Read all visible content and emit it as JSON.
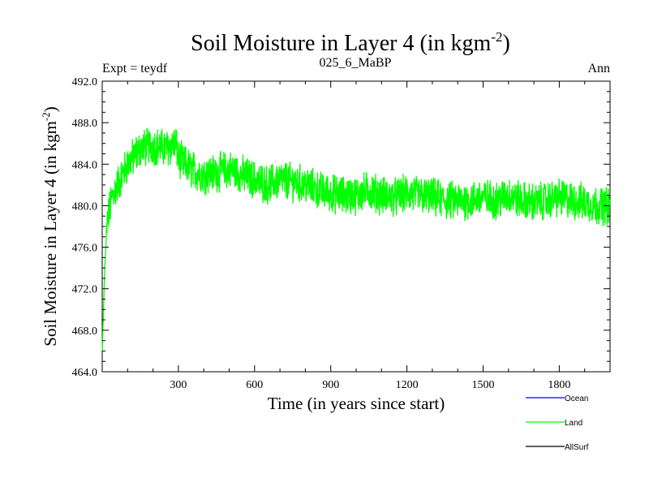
{
  "chart_data": {
    "type": "line",
    "title": "Soil Moisture in Layer 4 (in kgm",
    "title_sup": "-2",
    "title_close": ")",
    "subtitle_left": "Expt = teydf",
    "subtitle_center": "025_6_MaBP",
    "subtitle_right": "Ann",
    "xlabel": "Time (in years since start)",
    "ylabel": "Soil Moisture in Layer 4 (in kgm",
    "ylabel_sup": "-2",
    "ylabel_close": ")",
    "xlim": [
      0,
      2000
    ],
    "ylim": [
      464.0,
      492.0
    ],
    "xticks": [
      300,
      600,
      900,
      1200,
      1500,
      1800
    ],
    "xtick_labels": [
      "300",
      "600",
      "900",
      "1200",
      "1500",
      "1800"
    ],
    "yticks": [
      464,
      468,
      472,
      476,
      480,
      484,
      488,
      492
    ],
    "ytick_labels": [
      "464.0",
      "468.0",
      "472.0",
      "476.0",
      "480.0",
      "484.0",
      "488.0",
      "492.0"
    ],
    "grid": false,
    "legend_position": "bottom-right",
    "series": [
      {
        "name": "Ocean",
        "color": "#0000ff",
        "x": [],
        "y": []
      },
      {
        "name": "Land",
        "color": "#00ff00",
        "x": [
          0,
          5,
          10,
          20,
          40,
          60,
          100,
          150,
          200,
          250,
          290,
          300,
          350,
          400,
          450,
          500,
          550,
          600,
          650,
          700,
          750,
          800,
          850,
          900,
          950,
          1000,
          1050,
          1100,
          1150,
          1200,
          1250,
          1300,
          1350,
          1400,
          1450,
          1500,
          1550,
          1600,
          1650,
          1700,
          1750,
          1800,
          1850,
          1900,
          1950,
          2000
        ],
        "y": [
          466.0,
          470.0,
          474.0,
          478.5,
          481.0,
          482.0,
          484.0,
          485.5,
          485.8,
          485.5,
          486.0,
          484.5,
          483.5,
          483.0,
          483.2,
          483.5,
          483.0,
          482.5,
          482.0,
          482.5,
          482.3,
          482.0,
          481.5,
          481.2,
          481.0,
          481.0,
          481.5,
          481.0,
          480.8,
          481.2,
          481.0,
          480.8,
          480.5,
          480.5,
          480.5,
          480.8,
          480.5,
          481.0,
          480.5,
          480.3,
          480.5,
          480.8,
          480.5,
          480.3,
          480.0,
          480.0
        ],
        "noise_amplitude": 1.6
      },
      {
        "name": "AllSurf",
        "color": "#000000",
        "x": [],
        "y": []
      }
    ]
  }
}
